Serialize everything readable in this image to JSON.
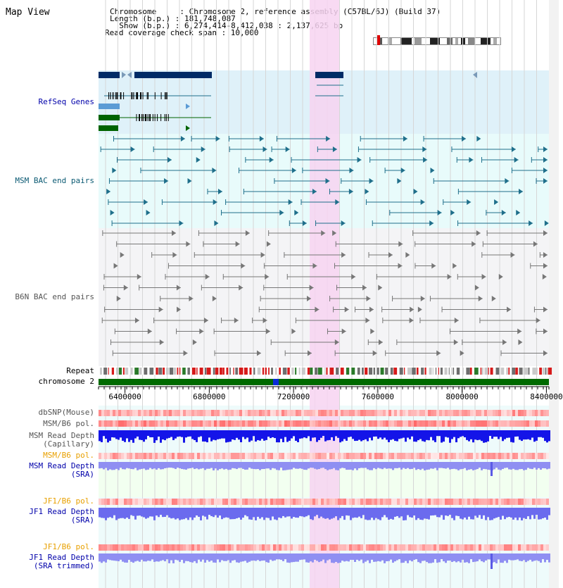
{
  "header": {
    "title": "Map View",
    "info": [
      "Chromosome     : Chromosome 2, reference assembly (C57BL/6J) (Build 37)",
      "Length (b.p.) : 181,748,087",
      "  Show (b.p.) : 6,274,414-8,412,038 : 2,137,625 bp",
      "Read coverage check span : 10,000"
    ]
  },
  "view": {
    "start": 6274414,
    "end": 8412038
  },
  "tracks": {
    "refseq_label": "RefSeq Genes",
    "msm_bac_label": "MSM BAC end pairs",
    "b6n_bac_label": "B6N BAC end pairs",
    "repeat_label": "Repeat",
    "chromosome_label": "chromosome 2",
    "dbsnp_label": "dbSNP(Mouse)",
    "msm_b6_pol_label": "MSM/B6 pol.",
    "msm_depth_cap_label_1": "MSM Read Depth",
    "msm_depth_cap_label_2": "(Capillary)",
    "msm_b6_pol_sra_label": "MSM/B6 pol.",
    "msm_depth_sra_label_1": "MSM Read Depth",
    "msm_depth_sra_label_2": "(SRA)",
    "jf1_b6_pol_label": "JF1/B6 pol.",
    "jf1_depth_sra_label_1": "JF1 Read Depth",
    "jf1_depth_sra_label_2": "(SRA)",
    "jf1_b6_pol2_label": "JF1/B6 pol.",
    "jf1_depth_trim_label_1": "JF1 Read Depth",
    "jf1_depth_trim_label_2": "(SRA trimmed)"
  },
  "ruler": {
    "ticks": [
      "6400000",
      "6800000",
      "7200000",
      "7600000",
      "8000000",
      "8400000"
    ]
  },
  "colors": {
    "refseq_dark": "#002b66",
    "refseq_light": "#5b9bd5",
    "refseq_green": "#006400",
    "msm_bac": "#1f6f8b",
    "b6n_bac": "#777777",
    "highlight": "#f7d3f1",
    "label_blue": "#0000aa",
    "label_teal": "#0b5a73",
    "label_orange": "#e8a000",
    "label_gray": "#555555"
  }
}
